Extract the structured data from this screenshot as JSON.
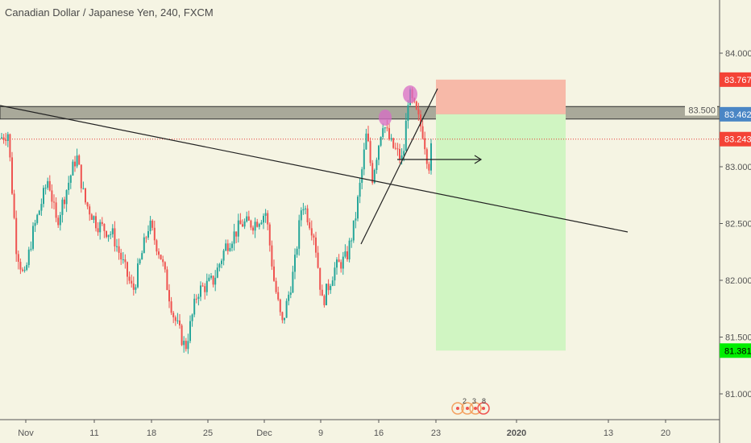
{
  "header": {
    "title": "Canadian Dollar / Japanese Yen, 240, FXCM"
  },
  "colors": {
    "up": "#26a69a",
    "down": "#ef5350",
    "bg": "#f5f4e3",
    "stop": "#f44336",
    "entry": "#4a86c5",
    "target": "#00ee00"
  },
  "chart_data": {
    "type": "candlestick",
    "title": "Canadian Dollar / Japanese Yen, 240, FXCM",
    "y_ticks": [
      "84.000",
      "83.500",
      "83.000",
      "82.500",
      "82.000",
      "81.500",
      "81.000"
    ],
    "y_tick_values": [
      84,
      83.5,
      83,
      82.5,
      82,
      81.5,
      81
    ],
    "ylim": [
      80.75,
      84.45
    ],
    "x_ticks": [
      "Nov",
      "11",
      "18",
      "25",
      "Dec",
      "9",
      "16",
      "23",
      "2020",
      "13",
      "20"
    ],
    "approx_close_path": [
      [
        0,
        83.25
      ],
      [
        10,
        83.3
      ],
      [
        20,
        82.3
      ],
      [
        30,
        82.0
      ],
      [
        40,
        82.4
      ],
      [
        60,
        82.9
      ],
      [
        70,
        82.5
      ],
      [
        95,
        83.1
      ],
      [
        105,
        82.7
      ],
      [
        120,
        82.5
      ],
      [
        140,
        82.4
      ],
      [
        165,
        81.9
      ],
      [
        185,
        82.5
      ],
      [
        200,
        82.2
      ],
      [
        215,
        81.7
      ],
      [
        230,
        81.4
      ],
      [
        245,
        81.9
      ],
      [
        265,
        82.0
      ],
      [
        280,
        82.3
      ],
      [
        300,
        82.5
      ],
      [
        315,
        82.5
      ],
      [
        330,
        82.6
      ],
      [
        340,
        82.0
      ],
      [
        350,
        81.6
      ],
      [
        365,
        82.1
      ],
      [
        375,
        82.7
      ],
      [
        390,
        82.4
      ],
      [
        400,
        81.8
      ],
      [
        415,
        82.1
      ],
      [
        430,
        82.2
      ],
      [
        440,
        82.5
      ],
      [
        448,
        82.9
      ],
      [
        455,
        83.3
      ],
      [
        462,
        82.9
      ],
      [
        475,
        83.4
      ],
      [
        485,
        83.2
      ],
      [
        500,
        83.05
      ],
      [
        507,
        83.65
      ],
      [
        515,
        83.5
      ],
      [
        525,
        83.3
      ],
      [
        532,
        83.0
      ],
      [
        537,
        83.25
      ]
    ],
    "price_labels": {
      "stop": "83.767",
      "entry": "83.462",
      "last": "83.243",
      "target": "81.381"
    },
    "levels": {
      "stop": 83.767,
      "entry": 83.462,
      "last": 83.243,
      "target": 81.381,
      "zone_top": 83.53,
      "zone_bottom": 83.42
    },
    "events": [
      "2",
      "3",
      "8"
    ]
  }
}
